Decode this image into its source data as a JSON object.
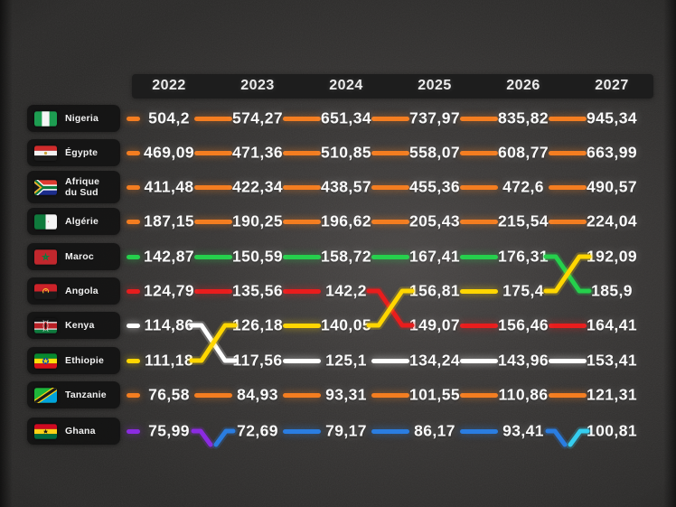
{
  "years": [
    "2022",
    "2023",
    "2024",
    "2025",
    "2026",
    "2027"
  ],
  "palette": {
    "orange": "#f47d20",
    "green": "#25d04c",
    "red": "#e91d1d",
    "yellow": "#ffd600",
    "white": "#ffffff",
    "purple": "#8b2be2",
    "blue": "#2a7de1",
    "cyan": "#35cdef"
  },
  "rows": [
    {
      "label": "Nigeria",
      "flag": "nigeria-flag",
      "two_line": false,
      "values": [
        "504,2",
        "574,27",
        "651,34",
        "737,97",
        "835,82",
        "945,34"
      ],
      "segments": [
        "orange",
        "orange",
        "orange",
        "orange",
        "orange",
        "orange"
      ]
    },
    {
      "label": "Égypte",
      "flag": "egypt-flag",
      "two_line": false,
      "values": [
        "469,09",
        "471,36",
        "510,85",
        "558,07",
        "608,77",
        "663,99"
      ],
      "segments": [
        "orange",
        "orange",
        "orange",
        "orange",
        "orange",
        "orange"
      ]
    },
    {
      "label": "Afrique\ndu Sud",
      "flag": "south-africa-flag",
      "two_line": true,
      "values": [
        "411,48",
        "422,34",
        "438,57",
        "455,36",
        "472,6",
        "490,57"
      ],
      "segments": [
        "orange",
        "orange",
        "orange",
        "orange",
        "orange",
        "orange"
      ]
    },
    {
      "label": "Algérie",
      "flag": "algeria-flag",
      "two_line": false,
      "values": [
        "187,15",
        "190,25",
        "196,62",
        "205,43",
        "215,54",
        "224,04"
      ],
      "segments": [
        "orange",
        "orange",
        "orange",
        "orange",
        "orange",
        "orange"
      ]
    },
    {
      "label": "Maroc",
      "flag": "morocco-flag",
      "two_line": false,
      "values": [
        "142,87",
        "150,59",
        "158,72",
        "167,41",
        "176,31",
        "192,09"
      ],
      "segments": [
        "green",
        "green",
        "green",
        "green",
        "green",
        "none"
      ]
    },
    {
      "label": "Angola",
      "flag": "angola-flag",
      "two_line": false,
      "values": [
        "124,79",
        "135,56",
        "142,2",
        "156,81",
        "175,4",
        "185,9"
      ],
      "segments": [
        "red",
        "red",
        "red",
        "none",
        "yellow",
        "none"
      ]
    },
    {
      "label": "Kenya",
      "flag": "kenya-flag",
      "two_line": false,
      "values": [
        "114,86",
        "126,18",
        "140,05",
        "149,07",
        "156,46",
        "164,41"
      ],
      "segments": [
        "white",
        "none",
        "yellow",
        "none",
        "red",
        "red"
      ]
    },
    {
      "label": "Ethiopie",
      "flag": "ethiopia-flag",
      "two_line": false,
      "values": [
        "111,18",
        "117,56",
        "125,1",
        "134,24",
        "143,96",
        "153,41"
      ],
      "segments": [
        "yellow",
        "none",
        "white",
        "white",
        "white",
        "white"
      ]
    },
    {
      "label": "Tanzanie",
      "flag": "tanzania-flag",
      "two_line": false,
      "values": [
        "76,58",
        "84,93",
        "93,31",
        "101,55",
        "110,86",
        "121,31"
      ],
      "segments": [
        "orange",
        "orange",
        "orange",
        "orange",
        "orange",
        "orange"
      ]
    },
    {
      "label": "Ghana",
      "flag": "ghana-flag",
      "two_line": false,
      "values": [
        "75,99",
        "72,69",
        "79,17",
        "86,17",
        "93,41",
        "100,81"
      ],
      "segments": [
        "purple",
        "none",
        "blue",
        "blue",
        "blue",
        "none"
      ]
    }
  ],
  "crossings": [
    {
      "kind": "full",
      "boundary": 0,
      "top_row": 6,
      "bottom_row": 7,
      "down": "white",
      "up": "yellow"
    },
    {
      "kind": "full",
      "boundary": 2,
      "top_row": 5,
      "bottom_row": 6,
      "down": "red",
      "up": "yellow"
    },
    {
      "kind": "full",
      "boundary": 4,
      "top_row": 4,
      "bottom_row": 5,
      "down": "green",
      "up": "yellow"
    },
    {
      "kind": "exit_enter",
      "boundary": 0,
      "row": 9,
      "exit": "purple",
      "enter": "blue"
    },
    {
      "kind": "exit_enter",
      "boundary": 4,
      "row": 9,
      "exit": "blue",
      "enter": "cyan"
    }
  ],
  "chart_data": {
    "type": "line",
    "subtype": "rank-bump-table",
    "x": [
      "2022",
      "2023",
      "2024",
      "2025",
      "2026",
      "2027"
    ],
    "series": [
      {
        "name": "Nigeria",
        "color": "#f47d20",
        "values": [
          504.2,
          574.27,
          651.34,
          737.97,
          835.82,
          945.34
        ]
      },
      {
        "name": "Égypte",
        "color": "#f47d20",
        "values": [
          469.09,
          471.36,
          510.85,
          558.07,
          608.77,
          663.99
        ]
      },
      {
        "name": "Afrique du Sud",
        "color": "#f47d20",
        "values": [
          411.48,
          422.34,
          438.57,
          455.36,
          472.6,
          490.57
        ]
      },
      {
        "name": "Algérie",
        "color": "#f47d20",
        "values": [
          187.15,
          190.25,
          196.62,
          205.43,
          215.54,
          224.04
        ]
      },
      {
        "name": "Maroc (row 5)",
        "color": "#25d04c",
        "values": [
          142.87,
          150.59,
          158.72,
          167.41,
          176.31,
          192.09
        ]
      },
      {
        "name": "Angola (row 6)",
        "color": "#e91d1d",
        "values": [
          124.79,
          135.56,
          142.2,
          156.81,
          175.4,
          185.9
        ]
      },
      {
        "name": "Kenya (row 7)",
        "color": "#ffffff",
        "values": [
          114.86,
          126.18,
          140.05,
          149.07,
          156.46,
          164.41
        ]
      },
      {
        "name": "Ethiopie (row 8)",
        "color": "#ffd600",
        "values": [
          111.18,
          117.56,
          125.1,
          134.24,
          143.96,
          153.41
        ]
      },
      {
        "name": "Tanzanie",
        "color": "#f47d20",
        "values": [
          76.58,
          84.93,
          93.31,
          101.55,
          110.86,
          121.31
        ]
      },
      {
        "name": "Ghana (row 10)",
        "color": "#8b2be2",
        "values": [
          75.99,
          72.69,
          79.17,
          86.17,
          93.41,
          100.81
        ]
      }
    ],
    "annotations": [
      "X crossover between rows Kenya/Ethiopie between 2022 and 2023 (white down, yellow up)",
      "X crossover between rows Angola/Kenya between 2024 and 2025 (red down, yellow up)",
      "X crossover between rows Maroc/Angola between 2026 and 2027 (green down, yellow up)",
      "Ghana row: purple line exits downward and blue line enters between 2022 and 2023",
      "Ghana row: blue line exits downward and cyan line enters between 2026 and 2027"
    ],
    "legend_position": "none",
    "grid": false
  }
}
